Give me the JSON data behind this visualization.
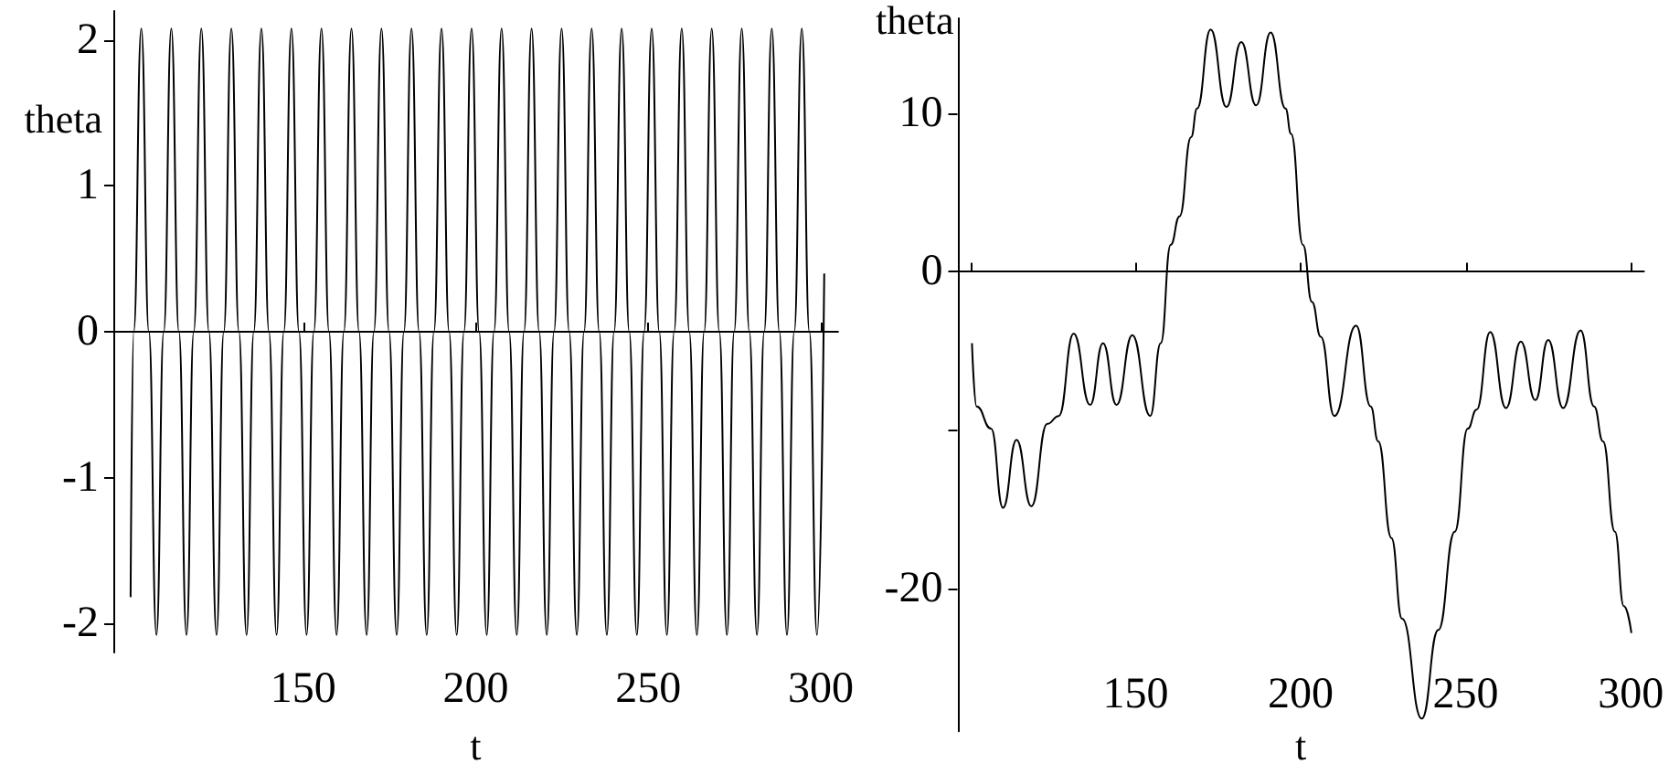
{
  "chart_data": [
    {
      "type": "line",
      "xlabel": "t",
      "ylabel": "theta",
      "xlim": [
        95,
        305
      ],
      "ylim": [
        -2.2,
        2.2
      ],
      "xticks": [
        150,
        200,
        250,
        300
      ],
      "yticks": [
        -2,
        -1,
        0,
        1,
        2
      ],
      "x": [
        100,
        100.9,
        103.1,
        105.3,
        107.5,
        109.6,
        111.8,
        114.0,
        116.2,
        118.3,
        120.5,
        122.7,
        124.9,
        127.0,
        129.2,
        131.4,
        133.6,
        135.7,
        137.9,
        140.1,
        142.3,
        144.4,
        146.6,
        148.8,
        151.0,
        153.1,
        155.3,
        157.5,
        159.7,
        161.8,
        164.0,
        166.2,
        168.4,
        170.5,
        172.7,
        174.9,
        177.1,
        179.2,
        181.4,
        183.6,
        185.8,
        187.9,
        190.1,
        192.3,
        194.5,
        196.6,
        198.8,
        201.0,
        203.2,
        205.3,
        207.5,
        209.7,
        211.9,
        214.0,
        216.2,
        218.4,
        220.6,
        222.7,
        224.9,
        227.1,
        229.3,
        231.4,
        233.6,
        235.8,
        238.0,
        240.1,
        242.3,
        244.5,
        246.7,
        248.8,
        251.0,
        253.2,
        255.4,
        257.5,
        259.7,
        261.9,
        264.1,
        266.2,
        268.4,
        270.6,
        272.8,
        274.9,
        277.1,
        279.3,
        281.5,
        283.6,
        285.8,
        288.0,
        290.2,
        292.3,
        294.5,
        296.7,
        298.9,
        301
      ],
      "series": [
        {
          "color": "#000000",
          "values": [
            -1.82,
            0,
            2.08,
            0,
            -2.08,
            0,
            2.08,
            0,
            -2.08,
            0,
            2.08,
            0,
            -2.08,
            0,
            2.08,
            0,
            -2.08,
            0,
            2.08,
            0,
            -2.08,
            0,
            2.08,
            0,
            -2.08,
            0,
            2.08,
            0,
            -2.08,
            0,
            2.08,
            0,
            -2.08,
            0,
            2.08,
            0,
            -2.08,
            0,
            2.08,
            0,
            -2.08,
            0,
            2.08,
            0,
            -2.08,
            0,
            2.08,
            0,
            -2.08,
            0,
            2.08,
            0,
            -2.08,
            0,
            2.08,
            0,
            -2.08,
            0,
            2.08,
            0,
            -2.08,
            0,
            2.08,
            0,
            -2.08,
            0,
            2.08,
            0,
            -2.08,
            0,
            2.08,
            0,
            -2.08,
            0,
            2.08,
            0,
            -2.08,
            0,
            2.08,
            0,
            -2.08,
            0,
            2.08,
            0,
            -2.08,
            0,
            2.08,
            0,
            -2.08,
            0,
            2.08,
            0,
            -2.08,
            0.4
          ]
        }
      ]
    },
    {
      "type": "line",
      "xlabel": "t",
      "ylabel": "theta",
      "xlim": [
        96,
        304
      ],
      "ylim": [
        -29,
        16
      ],
      "xticks": [
        {
          "value": 100,
          "label": null
        },
        150,
        200,
        250,
        300
      ],
      "yticks": [
        -20,
        {
          "value": -10,
          "label": null
        },
        0,
        10
      ],
      "x": [
        100.4,
        101.8,
        106.2,
        109.8,
        113.9,
        118.4,
        123.2,
        126.7,
        131.2,
        136.2,
        140.1,
        144.2,
        149.0,
        154.4,
        157.6,
        160.6,
        163.3,
        166.8,
        168.6,
        172.7,
        177.5,
        182.0,
        186.5,
        190.9,
        195.4,
        197.1,
        200.7,
        203.4,
        206.1,
        210.2,
        216.8,
        221.2,
        223.5,
        227.5,
        230.7,
        236.7,
        241.7,
        246.7,
        250.6,
        253.3,
        257.4,
        262.2,
        266.7,
        271.1,
        275.0,
        279.5,
        284.8,
        288.9,
        291.6,
        295.2,
        297.9,
        300.2
      ],
      "series": [
        {
          "color": "#000000",
          "values": [
            -4.5,
            -8.5,
            -9.9,
            -14.9,
            -10.6,
            -14.8,
            -9.6,
            -9.1,
            -3.9,
            -8.4,
            -4.5,
            -8.4,
            -4.0,
            -9.1,
            -4.5,
            1.7,
            3.5,
            8.5,
            10.3,
            15.3,
            10.4,
            14.5,
            10.5,
            15.1,
            10.3,
            8.7,
            1.7,
            -1.9,
            -4.1,
            -9.1,
            -3.4,
            -8.5,
            -10.7,
            -16.8,
            -21.9,
            -28.2,
            -22.6,
            -16.4,
            -9.9,
            -8.7,
            -3.8,
            -8.6,
            -4.4,
            -8.1,
            -4.3,
            -8.6,
            -3.7,
            -8.5,
            -10.7,
            -16.4,
            -21.1,
            -22.8
          ]
        }
      ]
    }
  ]
}
